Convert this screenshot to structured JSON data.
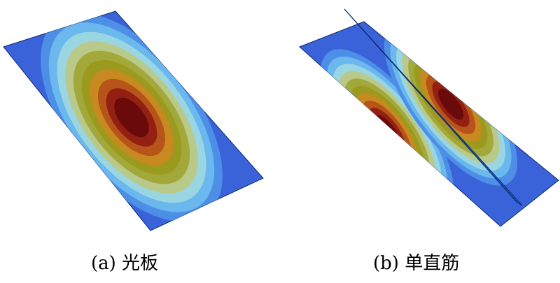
{
  "captions": {
    "a": "(a) 光板",
    "b": "(b) 单直筋"
  },
  "colormap": [
    "#3a63d9",
    "#4d8fe6",
    "#6ab8ee",
    "#9ad6e2",
    "#b8c98a",
    "#a3a83a",
    "#9c9a1e",
    "#c88a20",
    "#b6541a",
    "#932012",
    "#6b0a0a"
  ],
  "stiffener_color": "#1d5fcf",
  "edge_color": "#0b2a6e"
}
